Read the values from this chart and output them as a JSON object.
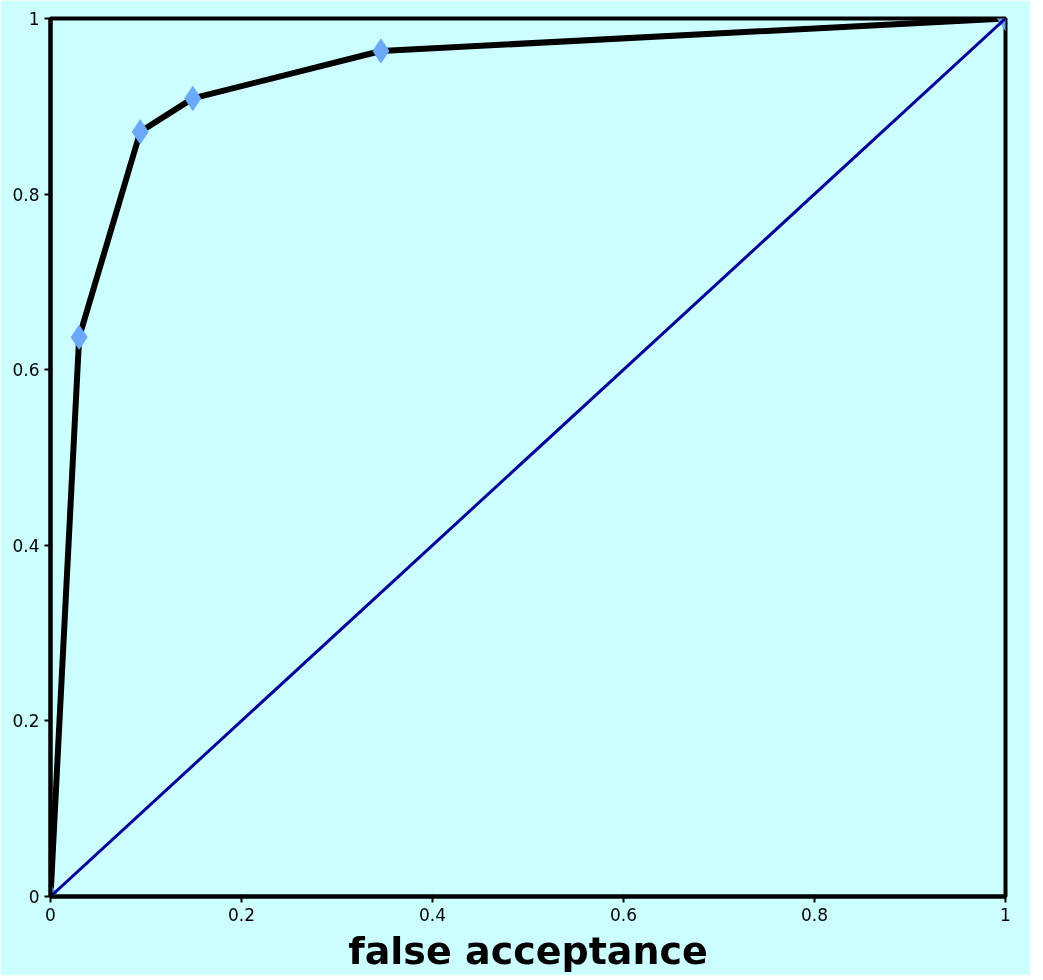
{
  "chart_data": {
    "type": "line",
    "xlabel": "false acceptance",
    "series": [
      {
        "color": "#000000",
        "colors": [
          "#6aa8f8",
          "#6aa8f8",
          "#6aa8f8",
          "#6aa8f8",
          "#6aa8f8",
          "#6aa8f8"
        ],
        "marker": "diamond",
        "x": [
          0,
          0.03,
          0.094,
          0.149,
          0.346,
          1
        ],
        "values": [
          0,
          0.637,
          0.871,
          0.909,
          0.963,
          1
        ]
      },
      {
        "color": "#000099",
        "marker": "none",
        "x": [
          0,
          1
        ],
        "values": [
          0,
          1
        ]
      }
    ],
    "xlim": [
      0,
      1
    ],
    "ylim": [
      0,
      1
    ],
    "xticks": [
      0,
      0.2,
      0.4,
      0.6,
      0.8,
      1
    ],
    "yticks": [
      0,
      0.2,
      0.4,
      0.6,
      0.8,
      1
    ],
    "grid": false
  }
}
